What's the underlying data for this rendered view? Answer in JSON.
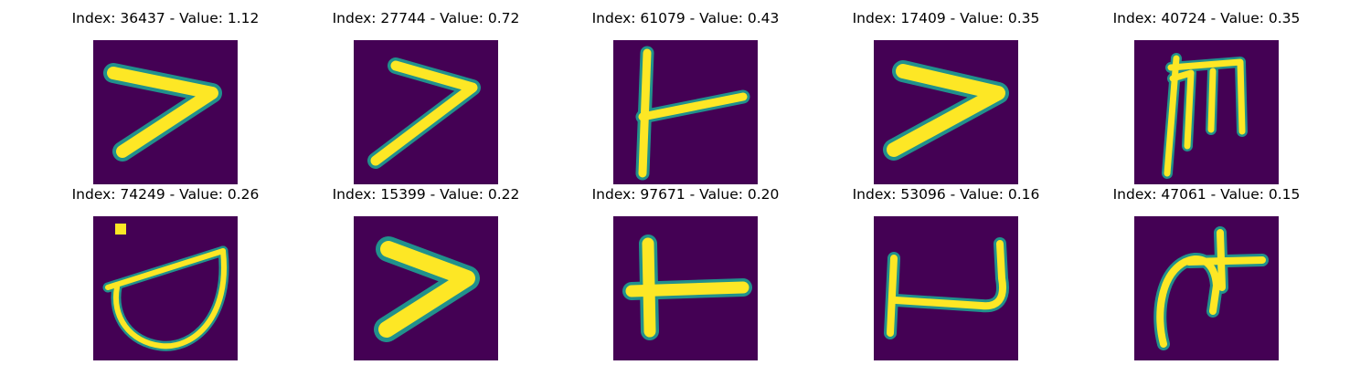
{
  "panels": [
    {
      "index": "36437",
      "value": "1.12",
      "title": "Index: 36437 - Value: 1.12",
      "shape": "angle"
    },
    {
      "index": "27744",
      "value": "0.72",
      "title": "Index: 27744 - Value: 0.72",
      "shape": "angle"
    },
    {
      "index": "61079",
      "value": "0.43",
      "title": "Index: 61079 - Value: 0.43",
      "shape": "tee"
    },
    {
      "index": "17409",
      "value": "0.35",
      "title": "Index: 17409 - Value: 0.35",
      "shape": "angle"
    },
    {
      "index": "40724",
      "value": "0.35",
      "title": "Index: 40724 - Value: 0.35",
      "shape": "m-glyph"
    },
    {
      "index": "74249",
      "value": "0.26",
      "title": "Index: 74249 - Value: 0.26",
      "shape": "bowl"
    },
    {
      "index": "15399",
      "value": "0.22",
      "title": "Index: 15399 - Value: 0.22",
      "shape": "angle"
    },
    {
      "index": "97671",
      "value": "0.20",
      "title": "Index: 97671 - Value: 0.20",
      "shape": "tee"
    },
    {
      "index": "53096",
      "value": "0.16",
      "title": "Index: 53096 - Value: 0.16",
      "shape": "cup"
    },
    {
      "index": "47061",
      "value": "0.15",
      "title": "Index: 47061 - Value: 0.15",
      "shape": "cross-hook"
    }
  ],
  "colors": {
    "background": "#440154",
    "stroke": "#fde725",
    "edge": "#21918c"
  }
}
